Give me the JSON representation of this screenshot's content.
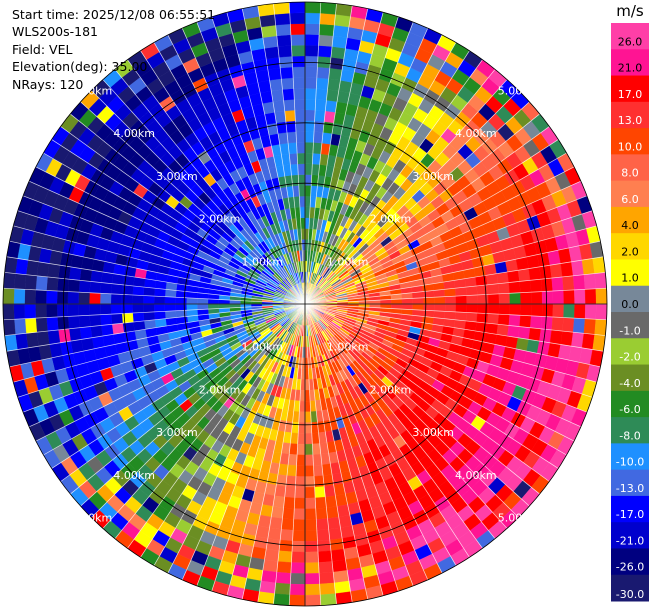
{
  "header": {
    "start_time": "Start time: 2025/12/08 06:55:51",
    "site": "WLS200s-181",
    "field": "Field: VEL",
    "elevation": "Elevation(deg): 35.00",
    "nrays": "NRays: 120"
  },
  "chart_data": {
    "type": "heatmap",
    "projection": "polar-ppi",
    "title": "",
    "field": "VEL",
    "units": "m/s",
    "n_rays": 120,
    "elevation_deg": 35.0,
    "max_range_km": 5.0,
    "range_rings_km": [
      1.0,
      2.0,
      3.0,
      4.0,
      5.0
    ],
    "ring_labels": [
      "1.00km",
      "2.00km",
      "3.00km",
      "4.00km",
      "5.00km"
    ],
    "colorbar": {
      "unit_label": "m/s",
      "ticks": [
        "26.0",
        "21.0",
        "17.0",
        "13.0",
        "10.0",
        "8.0",
        "6.0",
        "4.0",
        "2.0",
        "1.0",
        "0.0",
        "-1.0",
        "-2.0",
        "-4.0",
        "-6.0",
        "-8.0",
        "-10.0",
        "-13.0",
        "-17.0",
        "-21.0",
        "-26.0",
        "-30.0"
      ],
      "bins": [
        {
          "min": 26,
          "max": 30,
          "color": "#ff3fa7"
        },
        {
          "min": 21,
          "max": 26,
          "color": "#ff1493"
        },
        {
          "min": 17,
          "max": 21,
          "color": "#ff0000"
        },
        {
          "min": 13,
          "max": 17,
          "color": "#ff3030"
        },
        {
          "min": 10,
          "max": 13,
          "color": "#ff4500"
        },
        {
          "min": 8,
          "max": 10,
          "color": "#ff6347"
        },
        {
          "min": 6,
          "max": 8,
          "color": "#ff7f50"
        },
        {
          "min": 4,
          "max": 6,
          "color": "#ffa500"
        },
        {
          "min": 2,
          "max": 4,
          "color": "#ffd700"
        },
        {
          "min": 1,
          "max": 2,
          "color": "#ffff00"
        },
        {
          "min": 0,
          "max": 1,
          "color": "#778899"
        },
        {
          "min": -1,
          "max": 0,
          "color": "#696969"
        },
        {
          "min": -2,
          "max": -1,
          "color": "#9acd32"
        },
        {
          "min": -4,
          "max": -2,
          "color": "#6b8e23"
        },
        {
          "min": -6,
          "max": -4,
          "color": "#228b22"
        },
        {
          "min": -8,
          "max": -6,
          "color": "#2e8b57"
        },
        {
          "min": -10,
          "max": -8,
          "color": "#1e90ff"
        },
        {
          "min": -13,
          "max": -10,
          "color": "#4169e1"
        },
        {
          "min": -17,
          "max": -13,
          "color": "#0000ff"
        },
        {
          "min": -21,
          "max": -17,
          "color": "#0000cd"
        },
        {
          "min": -26,
          "max": -21,
          "color": "#000080"
        },
        {
          "min": -30,
          "max": -26,
          "color": "#191970"
        }
      ]
    },
    "wind_field": {
      "approach_direction_deg": 300,
      "speed_near_ground_ms": 7,
      "speed_at_max_range_ms": 28
    }
  }
}
